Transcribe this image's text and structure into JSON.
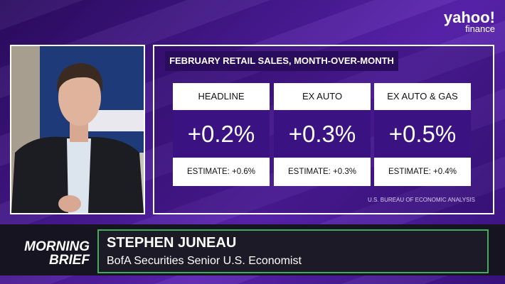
{
  "brand": {
    "name": "yahoo!",
    "sub": "finance"
  },
  "panel": {
    "title": "FEBRUARY RETAIL SALES, MONTH-OVER-MONTH",
    "cards": [
      {
        "label": "HEADLINE",
        "value": "+0.2%",
        "estimate": "ESTIMATE: +0.6%"
      },
      {
        "label": "EX AUTO",
        "value": "+0.3%",
        "estimate": "ESTIMATE: +0.3%"
      },
      {
        "label": "EX AUTO & GAS",
        "value": "+0.5%",
        "estimate": "ESTIMATE: +0.4%"
      }
    ],
    "source": "U.S. BUREAU OF ECONOMIC ANALYSIS"
  },
  "show": {
    "line1": "MORNING",
    "line2": "BRIEF"
  },
  "guest": {
    "name": "STEPHEN JUNEAU",
    "role": "BofA Securities Senior U.S. Economist"
  }
}
